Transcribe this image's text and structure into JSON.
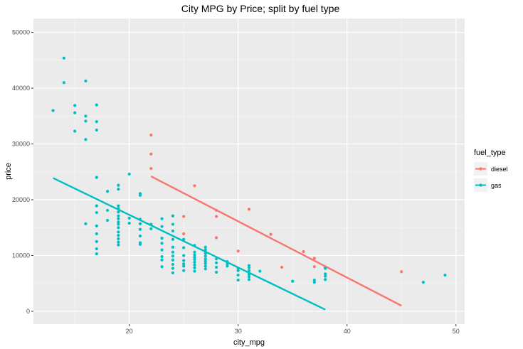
{
  "chart_data": {
    "type": "scatter",
    "title": "City MPG by Price; split by fuel type",
    "xlabel": "city_mpg",
    "ylabel": "price",
    "xlim": [
      11.2,
      50.8
    ],
    "ylim": [
      -2300,
      52500
    ],
    "x_ticks": [
      20,
      30,
      40,
      50
    ],
    "y_ticks": [
      0,
      10000,
      20000,
      30000,
      40000,
      50000
    ],
    "grid": true,
    "legend": {
      "title": "fuel_type",
      "placement": "right",
      "entries": [
        "diesel",
        "gas"
      ]
    },
    "series": [
      {
        "name": "diesel",
        "color": "#F8766D",
        "points": [
          [
            22,
            31600
          ],
          [
            22,
            28200
          ],
          [
            22,
            25600
          ],
          [
            25,
            17000
          ],
          [
            25,
            13900
          ],
          [
            26,
            22500
          ],
          [
            28,
            18100
          ],
          [
            28,
            17000
          ],
          [
            28,
            13200
          ],
          [
            30,
            10800
          ],
          [
            31,
            18300
          ],
          [
            33,
            13800
          ],
          [
            34,
            7900
          ],
          [
            36,
            10700
          ],
          [
            37,
            9500
          ],
          [
            37,
            8000
          ],
          [
            38,
            7800
          ],
          [
            45,
            7100
          ]
        ],
        "fit_line": [
          [
            22,
            24200
          ],
          [
            45,
            1000
          ]
        ]
      },
      {
        "name": "gas",
        "color": "#00BFC4",
        "points": [
          [
            13,
            36000
          ],
          [
            14,
            45400
          ],
          [
            14,
            41000
          ],
          [
            15,
            36900
          ],
          [
            15,
            35600
          ],
          [
            15,
            32300
          ],
          [
            16,
            41300
          ],
          [
            16,
            35000
          ],
          [
            16,
            34100
          ],
          [
            16,
            30800
          ],
          [
            16,
            15700
          ],
          [
            17,
            37000
          ],
          [
            17,
            34000
          ],
          [
            17,
            32500
          ],
          [
            17,
            24000
          ],
          [
            17,
            18900
          ],
          [
            17,
            17700
          ],
          [
            17,
            15300
          ],
          [
            17,
            13900
          ],
          [
            17,
            12500
          ],
          [
            17,
            11200
          ],
          [
            17,
            10300
          ],
          [
            18,
            21500
          ],
          [
            18,
            18100
          ],
          [
            18,
            16300
          ],
          [
            19,
            22600
          ],
          [
            19,
            21900
          ],
          [
            19,
            18900
          ],
          [
            19,
            18400
          ],
          [
            19,
            17800
          ],
          [
            19,
            17100
          ],
          [
            19,
            16600
          ],
          [
            19,
            16000
          ],
          [
            19,
            15600
          ],
          [
            19,
            15000
          ],
          [
            19,
            14200
          ],
          [
            19,
            13600
          ],
          [
            19,
            13000
          ],
          [
            19,
            12400
          ],
          [
            19,
            11900
          ],
          [
            20,
            24600
          ],
          [
            20,
            16700
          ],
          [
            20,
            15800
          ],
          [
            21,
            21100
          ],
          [
            21,
            20800
          ],
          [
            21,
            16500
          ],
          [
            21,
            15700
          ],
          [
            21,
            14700
          ],
          [
            21,
            13500
          ],
          [
            21,
            12300
          ],
          [
            21,
            12000
          ],
          [
            22,
            15600
          ],
          [
            22,
            14800
          ],
          [
            23,
            16600
          ],
          [
            23,
            15200
          ],
          [
            23,
            13100
          ],
          [
            23,
            12200
          ],
          [
            23,
            11000
          ],
          [
            23,
            9800
          ],
          [
            23,
            9200
          ],
          [
            23,
            8000
          ],
          [
            24,
            17100
          ],
          [
            24,
            15600
          ],
          [
            24,
            14400
          ],
          [
            24,
            12900
          ],
          [
            24,
            11500
          ],
          [
            24,
            10600
          ],
          [
            24,
            9900
          ],
          [
            24,
            9200
          ],
          [
            24,
            8400
          ],
          [
            24,
            7700
          ],
          [
            24,
            6900
          ],
          [
            25,
            12900
          ],
          [
            25,
            11400
          ],
          [
            25,
            10000
          ],
          [
            25,
            9100
          ],
          [
            25,
            8500
          ],
          [
            25,
            8100
          ],
          [
            25,
            7300
          ],
          [
            26,
            11800
          ],
          [
            26,
            10600
          ],
          [
            26,
            10100
          ],
          [
            26,
            9700
          ],
          [
            26,
            9300
          ],
          [
            26,
            8800
          ],
          [
            26,
            8300
          ],
          [
            26,
            7800
          ],
          [
            26,
            7200
          ],
          [
            27,
            11500
          ],
          [
            27,
            11000
          ],
          [
            27,
            10400
          ],
          [
            27,
            9900
          ],
          [
            27,
            9400
          ],
          [
            27,
            9000
          ],
          [
            27,
            8600
          ],
          [
            27,
            8100
          ],
          [
            27,
            7600
          ],
          [
            28,
            9400
          ],
          [
            28,
            8700
          ],
          [
            28,
            7900
          ],
          [
            28,
            7000
          ],
          [
            29,
            8900
          ],
          [
            29,
            8500
          ],
          [
            29,
            8100
          ],
          [
            30,
            7700
          ],
          [
            30,
            7300
          ],
          [
            30,
            6500
          ],
          [
            30,
            5600
          ],
          [
            31,
            8200
          ],
          [
            31,
            7800
          ],
          [
            31,
            7300
          ],
          [
            31,
            6900
          ],
          [
            31,
            6600
          ],
          [
            31,
            6200
          ],
          [
            31,
            5700
          ],
          [
            32,
            7200
          ],
          [
            35,
            5400
          ],
          [
            37,
            5600
          ],
          [
            37,
            5200
          ],
          [
            38,
            7700
          ],
          [
            38,
            6700
          ],
          [
            38,
            6300
          ],
          [
            38,
            5700
          ],
          [
            47,
            5200
          ],
          [
            49,
            6500
          ]
        ],
        "fit_line": [
          [
            13,
            23900
          ],
          [
            38,
            300
          ]
        ]
      }
    ]
  }
}
